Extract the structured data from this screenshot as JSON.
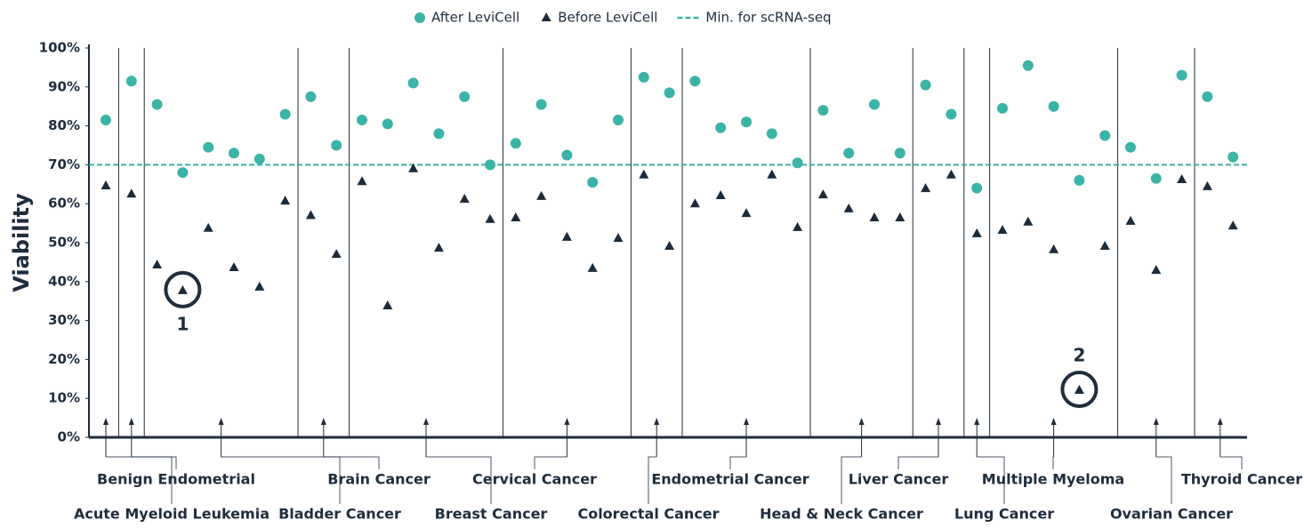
{
  "chart_data": {
    "type": "scatter",
    "y_label": "Viability",
    "ylim": [
      0,
      100
    ],
    "yticks": [
      {
        "value": 0,
        "label": "0%"
      },
      {
        "value": 10,
        "label": "10%"
      },
      {
        "value": 20,
        "label": "20%"
      },
      {
        "value": 30,
        "label": "30%"
      },
      {
        "value": 40,
        "label": "40%"
      },
      {
        "value": 50,
        "label": "50%"
      },
      {
        "value": 60,
        "label": "60%"
      },
      {
        "value": 70,
        "label": "70%"
      },
      {
        "value": 80,
        "label": "80%"
      },
      {
        "value": 90,
        "label": "90%"
      },
      {
        "value": 100,
        "label": "100%"
      }
    ],
    "groups": [
      {
        "label": "Acute Myeloid Leukemia",
        "count": 1
      },
      {
        "label": "Benign Endometrial",
        "count": 1
      },
      {
        "label": "Bladder Cancer",
        "count": 6
      },
      {
        "label": "Brain Cancer",
        "count": 2
      },
      {
        "label": "Breast Cancer",
        "count": 6
      },
      {
        "label": "Cervical Cancer",
        "count": 5
      },
      {
        "label": "Colorectal Cancer",
        "count": 2
      },
      {
        "label": "Endometrial Cancer",
        "count": 5
      },
      {
        "label": "Head & Neck Cancer",
        "count": 4
      },
      {
        "label": "Liver Cancer",
        "count": 2
      },
      {
        "label": "Lung Cancer",
        "count": 1
      },
      {
        "label": "Multiple Myeloma",
        "count": 5
      },
      {
        "label": "Ovarian Cancer",
        "count": 3
      },
      {
        "label": "Thyroid Cancer",
        "count": 2
      }
    ],
    "series": [
      {
        "name": "After LeviCell",
        "color": "#3bb3a6",
        "marker": "circle",
        "values": [
          81.5,
          91.5,
          85.5,
          68,
          74.5,
          73,
          71.5,
          83,
          87.5,
          75,
          81.5,
          80.5,
          91,
          78,
          87.5,
          70,
          75.5,
          85.5,
          72.5,
          65.5,
          81.5,
          92.5,
          88.5,
          91.5,
          79.5,
          81,
          78,
          70.5,
          84,
          73,
          85.5,
          73,
          90.5,
          83,
          64,
          84.5,
          95.5,
          85,
          66,
          77.5,
          74.5,
          66.5,
          93,
          87.5,
          72
        ]
      },
      {
        "name": "Before LeviCell",
        "color": "#1c2b39",
        "marker": "triangle",
        "values": [
          64.6,
          62.5,
          44.3,
          37.7,
          53.7,
          43.6,
          38.6,
          60.7,
          57,
          47,
          65.7,
          33.8,
          69,
          48.6,
          61.2,
          56,
          56.4,
          61.9,
          51.4,
          43.4,
          51.1,
          67.4,
          49.1,
          60,
          62.1,
          57.5,
          67.4,
          53.9,
          62.3,
          58.7,
          56.4,
          56.4,
          63.9,
          67.4,
          52.3,
          53.2,
          55.3,
          48.2,
          12.1,
          49.1,
          55.5,
          42.9,
          66.2,
          64.4,
          54.3
        ]
      }
    ],
    "reference": {
      "name": "Min. for scRNA-seq",
      "value": 70,
      "color": "#3bb3a6",
      "dashed": true
    },
    "annotations": [
      {
        "text": "1",
        "series": 1,
        "point": 3,
        "side": "below"
      },
      {
        "text": "2",
        "series": 1,
        "point": 38,
        "side": "above"
      }
    ]
  }
}
